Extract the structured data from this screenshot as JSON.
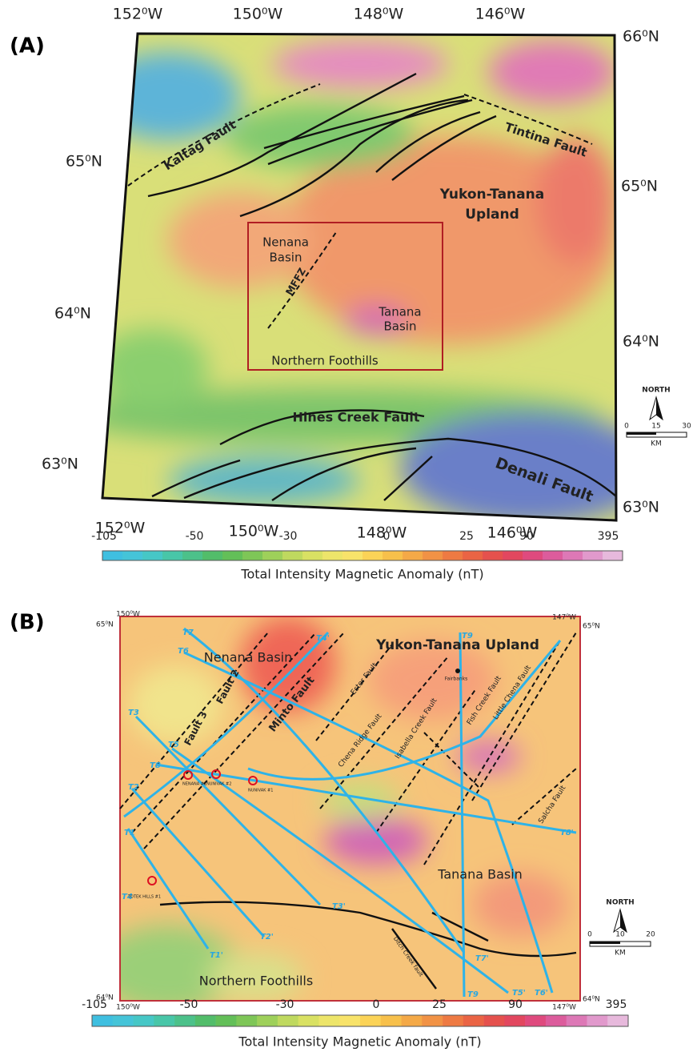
{
  "panel_a": {
    "label": "(A)",
    "top_lon": [
      "152⁰W",
      "150⁰W",
      "148⁰W",
      "146⁰W"
    ],
    "bottom_lon": [
      "152⁰W",
      "150⁰W",
      "148⁰W",
      "146⁰W"
    ],
    "left_lat": [
      "65⁰N",
      "64⁰N",
      "63⁰N"
    ],
    "right_lat": [
      "66⁰N",
      "65⁰N",
      "64⁰N",
      "63⁰N"
    ],
    "labels": [
      "Kaltag Fault",
      "Tintina Fault",
      "Yukon-Tanana",
      "Upland",
      "Nenana",
      "Basin",
      "MFFZ",
      "Tanana",
      "Basin",
      "Northern Foothills",
      "Hines Creek Fault",
      "Denali Fault"
    ],
    "scale": {
      "north": "NORTH",
      "ticks": [
        0,
        15,
        30
      ],
      "unit": "KM"
    },
    "colorbar": {
      "ticks": [
        -105,
        -50,
        -30,
        0,
        25,
        90,
        395
      ],
      "title": "Total Intensity Magnetic Anomaly (nT)"
    }
  },
  "panel_b": {
    "label": "(B)",
    "corners": [
      "150⁰W",
      "65⁰N",
      "147⁰W",
      "65⁰N",
      "64⁰N",
      "150⁰W",
      "64⁰N",
      "147⁰W"
    ],
    "labels": [
      "Yukon-Tanana Upland",
      "Nenana Basin",
      "Minto Fault",
      "Fault 2",
      "Fault 3",
      "Ester Fault",
      "Chena Ridge Fault",
      "Isabella Creek Fault",
      "Fish Creek Fault",
      "Little Chena Fault",
      "Salcha Fault",
      "Tanana Basin",
      "Northern Foothills",
      "Fairbanks",
      "Ditch Creek fault"
    ],
    "seismic_lines": [
      "T7",
      "T4'",
      "T9",
      "T6",
      "T3",
      "T5",
      "T8",
      "T2",
      "T1",
      "T4",
      "T1'",
      "T2'",
      "T3'",
      "T7'",
      "T9",
      "T5'",
      "T6'",
      "T8'"
    ],
    "wells": [
      "NENANA #1",
      "NUNIVAK #2",
      "NUNIVAK #1",
      "TOTEK HILLS #1"
    ],
    "scale": {
      "north": "NORTH",
      "ticks": [
        0,
        10,
        20
      ],
      "unit": "KM"
    },
    "colorbar": {
      "ticks": [
        -105,
        -50,
        -30,
        0,
        25,
        90,
        395
      ],
      "title": "Total Intensity Magnetic Anomaly (nT)"
    }
  }
}
